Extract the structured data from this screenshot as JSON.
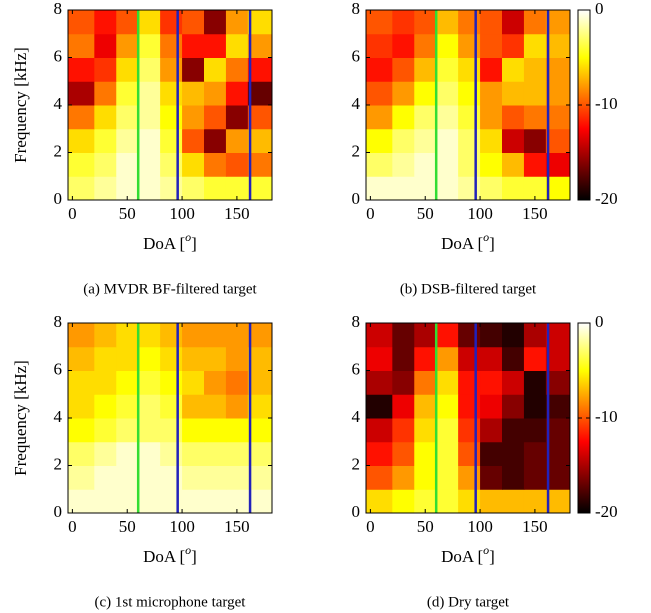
{
  "chart_data": [
    {
      "type": "heatmap",
      "caption": "(a) MVDR BF-filtered target",
      "xlabel_parts": [
        "DoA [",
        "o",
        "]"
      ],
      "ylabel": "Frequency [kHz]",
      "xlim": [
        -4,
        182
      ],
      "ylim": [
        0,
        8
      ],
      "xticks": [
        0,
        50,
        100,
        150
      ],
      "yticks": [
        0,
        2,
        4,
        6,
        8
      ],
      "colormap": "hot",
      "zlim": [
        -20,
        0
      ],
      "xbins": [
        -4,
        20,
        40,
        60,
        80,
        100,
        120,
        140,
        160,
        182
      ],
      "ybins": [
        0,
        1,
        2,
        3,
        4,
        5,
        6,
        7,
        8
      ],
      "z": [
        [
          -3,
          -2,
          -1,
          -1,
          -2,
          -3,
          -4,
          -4,
          -4
        ],
        [
          -4,
          -3,
          -1,
          -1,
          -3,
          -6,
          -9,
          -10,
          -9
        ],
        [
          -6,
          -4,
          -2,
          -1,
          -4,
          -10,
          -16,
          -8,
          -7
        ],
        [
          -9,
          -6,
          -3,
          -2,
          -5,
          -8,
          -10,
          -16,
          -10
        ],
        [
          -15,
          -9,
          -4,
          -2,
          -6,
          -7,
          -8,
          -12,
          -17
        ],
        [
          -12,
          -11,
          -6,
          -3,
          -8,
          -16,
          -6,
          -9,
          -12
        ],
        [
          -9,
          -13,
          -8,
          -4,
          -9,
          -12,
          -12,
          -6,
          -8
        ],
        [
          -10,
          -12,
          -10,
          -6,
          -11,
          -10,
          -16,
          -8,
          -6
        ]
      ],
      "lines": [
        {
          "x": 60,
          "color": "#33dd33"
        },
        {
          "x": 96,
          "color": "#2222bb"
        },
        {
          "x": 162,
          "color": "#2222bb"
        }
      ]
    },
    {
      "type": "heatmap",
      "caption": "(b) DSB-filtered target",
      "xlabel_parts": [
        "DoA [",
        "o",
        "]"
      ],
      "xlim": [
        -4,
        182
      ],
      "ylim": [
        0,
        8
      ],
      "xticks": [
        0,
        50,
        100,
        150
      ],
      "yticks": [
        0,
        2,
        4,
        6,
        8
      ],
      "colormap": "hot",
      "zlim": [
        -20,
        0
      ],
      "colorbar_ticks": [
        0,
        -10,
        -20
      ],
      "xbins": [
        -4,
        20,
        40,
        60,
        80,
        100,
        120,
        140,
        160,
        182
      ],
      "ybins": [
        0,
        1,
        2,
        3,
        4,
        5,
        6,
        7,
        8
      ],
      "z": [
        [
          -1,
          -1,
          -1,
          -1,
          -2,
          -3,
          -4,
          -4,
          -5
        ],
        [
          -3,
          -2,
          -1,
          -1,
          -3,
          -5,
          -7,
          -12,
          -13
        ],
        [
          -5,
          -3,
          -2,
          -1,
          -3,
          -6,
          -14,
          -16,
          -10
        ],
        [
          -8,
          -5,
          -3,
          -2,
          -4,
          -8,
          -10,
          -9,
          -9
        ],
        [
          -10,
          -8,
          -5,
          -3,
          -5,
          -8,
          -7,
          -7,
          -8
        ],
        [
          -12,
          -10,
          -7,
          -4,
          -6,
          -12,
          -6,
          -7,
          -8
        ],
        [
          -11,
          -12,
          -9,
          -5,
          -8,
          -10,
          -11,
          -6,
          -7
        ],
        [
          -10,
          -11,
          -10,
          -7,
          -9,
          -10,
          -14,
          -9,
          -8
        ]
      ],
      "lines": [
        {
          "x": 60,
          "color": "#33dd33"
        },
        {
          "x": 96,
          "color": "#2222bb"
        },
        {
          "x": 162,
          "color": "#2222bb"
        }
      ]
    },
    {
      "type": "heatmap",
      "caption": "(c) 1st microphone target",
      "xlabel_parts": [
        "DoA [",
        "o",
        "]"
      ],
      "ylabel": "Frequency [kHz]",
      "xlim": [
        -4,
        182
      ],
      "ylim": [
        0,
        8
      ],
      "xticks": [
        0,
        50,
        100,
        150
      ],
      "yticks": [
        0,
        2,
        4,
        6,
        8
      ],
      "colormap": "hot",
      "zlim": [
        -20,
        0
      ],
      "xbins": [
        -4,
        20,
        40,
        60,
        80,
        100,
        120,
        140,
        160,
        182
      ],
      "ybins": [
        0,
        1,
        2,
        3,
        4,
        5,
        6,
        7,
        8
      ],
      "z": [
        [
          -1,
          -1,
          -1,
          -1,
          -1,
          -1,
          -1,
          -1,
          -1
        ],
        [
          -2,
          -1,
          -1,
          -1,
          -1,
          -2,
          -2,
          -2,
          -2
        ],
        [
          -3,
          -2,
          -1,
          -1,
          -2,
          -3,
          -3,
          -3,
          -3
        ],
        [
          -5,
          -4,
          -3,
          -3,
          -3,
          -5,
          -5,
          -5,
          -5
        ],
        [
          -6,
          -5,
          -4,
          -3,
          -4,
          -7,
          -7,
          -8,
          -6
        ],
        [
          -6,
          -6,
          -5,
          -4,
          -5,
          -6,
          -8,
          -9,
          -7
        ],
        [
          -7,
          -6,
          -6,
          -5,
          -6,
          -7,
          -7,
          -8,
          -7
        ],
        [
          -8,
          -7,
          -6,
          -6,
          -7,
          -8,
          -8,
          -8,
          -8
        ]
      ],
      "lines": [
        {
          "x": 60,
          "color": "#33dd33"
        },
        {
          "x": 96,
          "color": "#2222bb"
        },
        {
          "x": 162,
          "color": "#2222bb"
        }
      ]
    },
    {
      "type": "heatmap",
      "caption": "(d) Dry target",
      "xlabel_parts": [
        "DoA [",
        "o",
        "]"
      ],
      "xlim": [
        -4,
        182
      ],
      "ylim": [
        0,
        8
      ],
      "xticks": [
        0,
        50,
        100,
        150
      ],
      "yticks": [
        0,
        2,
        4,
        6,
        8
      ],
      "colormap": "hot",
      "zlim": [
        -20,
        0
      ],
      "colorbar_ticks": [
        0,
        -10,
        -20
      ],
      "xbins": [
        -4,
        20,
        40,
        60,
        80,
        100,
        120,
        140,
        160,
        182
      ],
      "ybins": [
        0,
        1,
        2,
        3,
        4,
        5,
        6,
        7,
        8
      ],
      "z": [
        [
          -6,
          -5,
          -4,
          -4,
          -6,
          -7,
          -7,
          -7,
          -7
        ],
        [
          -10,
          -8,
          -5,
          -4,
          -8,
          -17,
          -18,
          -17,
          -17
        ],
        [
          -12,
          -10,
          -5,
          -4,
          -10,
          -18,
          -18,
          -17,
          -17
        ],
        [
          -14,
          -11,
          -6,
          -4,
          -11,
          -15,
          -18,
          -18,
          -17
        ],
        [
          -19,
          -13,
          -7,
          -5,
          -12,
          -13,
          -16,
          -19,
          -18
        ],
        [
          -15,
          -16,
          -9,
          -6,
          -12,
          -12,
          -14,
          -19,
          -16
        ],
        [
          -13,
          -17,
          -12,
          -8,
          -14,
          -14,
          -18,
          -12,
          -14
        ],
        [
          -14,
          -17,
          -15,
          -12,
          -17,
          -18,
          -19,
          -15,
          -14
        ]
      ],
      "lines": [
        {
          "x": 60,
          "color": "#33dd33"
        },
        {
          "x": 96,
          "color": "#2222bb"
        },
        {
          "x": 162,
          "color": "#2222bb"
        }
      ]
    }
  ]
}
